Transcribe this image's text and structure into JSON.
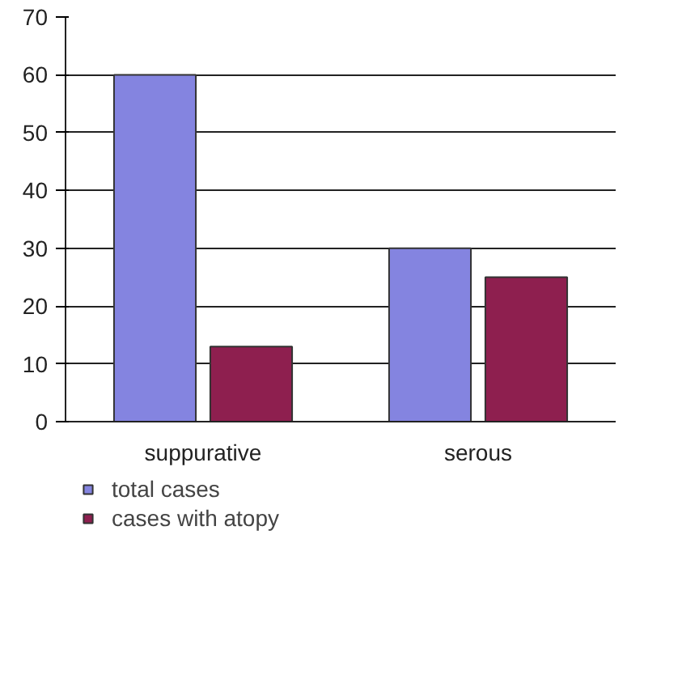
{
  "chart_data": {
    "type": "bar",
    "categories": [
      "suppurative",
      "serous"
    ],
    "series": [
      {
        "name": "total cases",
        "color": "#8484e0",
        "values": [
          60,
          30
        ]
      },
      {
        "name": "cases with atopy",
        "color": "#8e1f4f",
        "values": [
          13,
          25
        ]
      }
    ],
    "ylim": [
      0,
      70
    ],
    "yticks": [
      0,
      10,
      20,
      30,
      40,
      50,
      60,
      70
    ],
    "grid": "y",
    "legend": "bottom"
  }
}
